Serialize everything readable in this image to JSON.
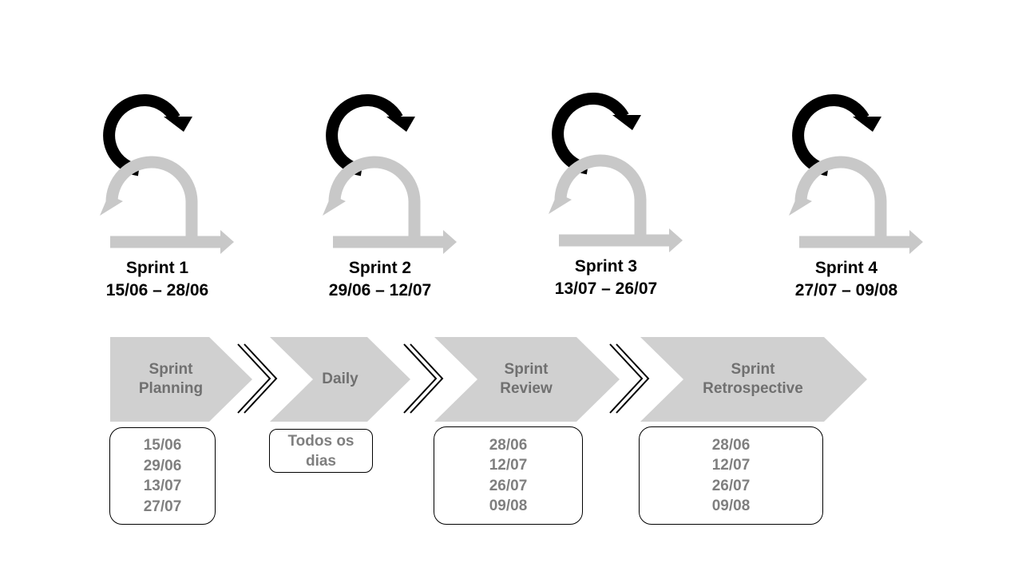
{
  "colors": {
    "primary_arrow": "#000000",
    "secondary_arrow": "#c8c8c8",
    "chevron_fill": "#d0d0d0",
    "step_text": "#707070",
    "date_text": "#7f7f7f"
  },
  "sprints": [
    {
      "icon": "sprint-cycle-icon",
      "title": "Sprint 1",
      "dates": "15/06 – 28/06"
    },
    {
      "icon": "sprint-cycle-icon",
      "title": "Sprint 2",
      "dates": "29/06 – 12/07"
    },
    {
      "icon": "sprint-cycle-icon",
      "title": "Sprint 3",
      "dates": "13/07 – 26/07"
    },
    {
      "icon": "sprint-cycle-icon",
      "title": "Sprint 4",
      "dates": "27/07 – 09/08"
    }
  ],
  "steps": [
    {
      "label": "Sprint\nPlanning",
      "dates": [
        "15/06",
        "29/06",
        "13/07",
        "27/07"
      ]
    },
    {
      "label": "Daily",
      "dates": [
        "Todos os",
        "dias"
      ]
    },
    {
      "label": "Sprint\nReview",
      "dates": [
        "28/06",
        "12/07",
        "26/07",
        "09/08"
      ]
    },
    {
      "label": "Sprint\nRetrospective",
      "dates": [
        "28/06",
        "12/07",
        "26/07",
        "09/08"
      ]
    }
  ]
}
